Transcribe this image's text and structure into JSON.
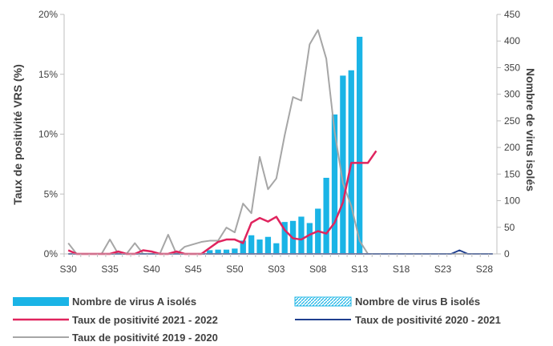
{
  "chart_data": {
    "type": "bar",
    "x_tick_labels": [
      "S30",
      "S35",
      "S40",
      "S45",
      "S50",
      "S03",
      "S08",
      "S13",
      "S18",
      "S23",
      "S28"
    ],
    "y_left": {
      "label": "Taux de positivité VRS (%)",
      "ticks": [
        "0%",
        "5%",
        "10%",
        "15%",
        "20%"
      ],
      "range": [
        0,
        20
      ]
    },
    "y_right": {
      "label": "Nombre de virus isolés",
      "ticks": [
        "0",
        "50",
        "100",
        "150",
        "200",
        "250",
        "300",
        "350",
        "400",
        "450"
      ],
      "range": [
        0,
        450
      ]
    },
    "weeks": [
      "S30",
      "S31",
      "S32",
      "S33",
      "S34",
      "S35",
      "S36",
      "S37",
      "S38",
      "S39",
      "S40",
      "S41",
      "S42",
      "S43",
      "S44",
      "S45",
      "S46",
      "S47",
      "S48",
      "S49",
      "S50",
      "S51",
      "S52",
      "S01",
      "S02",
      "S03",
      "S04",
      "S05",
      "S06",
      "S07",
      "S08",
      "S09",
      "S10",
      "S11",
      "S12",
      "S13",
      "S14",
      "S15",
      "S16",
      "S17",
      "S18",
      "S19",
      "S20",
      "S21",
      "S22",
      "S23",
      "S24",
      "S25",
      "S26",
      "S27",
      "S28",
      "S29"
    ],
    "series": [
      {
        "name": "Nombre de virus A isolés",
        "kind": "bar",
        "axis": "right",
        "color": "#1ab4e6",
        "values": [
          0,
          0,
          0,
          0,
          0,
          0,
          0,
          0,
          0,
          0,
          0,
          0,
          0,
          0,
          0,
          0,
          0,
          7,
          8,
          8,
          10,
          25,
          35,
          27,
          32,
          20,
          60,
          62,
          70,
          58,
          85,
          143,
          262,
          335,
          345,
          408,
          0,
          0,
          0,
          0,
          0,
          0,
          0,
          0,
          0,
          0,
          0,
          0,
          0,
          0,
          0,
          0
        ]
      },
      {
        "name": "Nombre de virus B isolés",
        "kind": "bar",
        "axis": "right",
        "color": "#1ab4e6",
        "pattern": "hatched",
        "values": [
          0,
          0,
          0,
          0,
          0,
          0,
          0,
          0,
          0,
          0,
          0,
          0,
          0,
          0,
          0,
          0,
          0,
          0,
          0,
          0,
          0,
          0,
          0,
          0,
          0,
          0,
          0,
          0,
          0,
          0,
          0,
          0,
          0,
          0,
          0,
          0,
          0,
          0,
          0,
          0,
          0,
          0,
          0,
          0,
          0,
          0,
          0,
          0,
          0,
          0,
          0,
          0
        ]
      },
      {
        "name": "Taux de positivité 2021 - 2022",
        "kind": "line",
        "axis": "left",
        "color": "#e0245e",
        "values": [
          0.3,
          0,
          0,
          0,
          0,
          0,
          0.2,
          0,
          0,
          0.3,
          0.2,
          0,
          0,
          0.2,
          0,
          0,
          0,
          0.5,
          1.0,
          1.2,
          1.2,
          0.9,
          2.6,
          3.0,
          2.7,
          3.1,
          2.0,
          1.3,
          1.2,
          1.6,
          1.9,
          1.7,
          2.6,
          4.3,
          7.6,
          7.6,
          7.6,
          8.6,
          null,
          null,
          null,
          null,
          null,
          null,
          null,
          null,
          null,
          null,
          null,
          null,
          null,
          null
        ]
      },
      {
        "name": "Taux de positivité 2020 - 2021",
        "kind": "line",
        "axis": "left",
        "color": "#1f3f8f",
        "values": [
          0,
          0,
          0,
          0,
          0,
          0,
          0,
          0,
          0,
          0,
          0,
          0,
          0,
          0,
          0,
          0,
          0,
          0,
          0,
          0,
          0,
          0,
          0,
          0,
          0,
          0,
          0,
          0,
          0,
          0,
          0,
          0,
          0,
          0,
          0,
          0,
          0,
          0,
          0,
          0,
          0,
          0,
          0,
          0,
          0,
          0,
          0,
          0.3,
          0,
          0,
          0,
          0
        ]
      },
      {
        "name": "Taux de positivité 2019 - 2020",
        "kind": "line",
        "axis": "left",
        "color": "#a6a6a6",
        "values": [
          0.9,
          0,
          0,
          0,
          0,
          1.2,
          0,
          0,
          0.9,
          0,
          0,
          0,
          1.6,
          0,
          0.6,
          0.8,
          1.0,
          1.1,
          1.1,
          2.2,
          1.8,
          4.2,
          3.4,
          8.1,
          5.4,
          6.3,
          9.9,
          13.1,
          12.8,
          17.5,
          18.7,
          16.3,
          10.2,
          5.9,
          4.0,
          1.1,
          0,
          0,
          0,
          0,
          0,
          0,
          0,
          0,
          0,
          0,
          0,
          0,
          0,
          0,
          0,
          0
        ]
      }
    ],
    "grid": false,
    "legend_position": "bottom"
  }
}
